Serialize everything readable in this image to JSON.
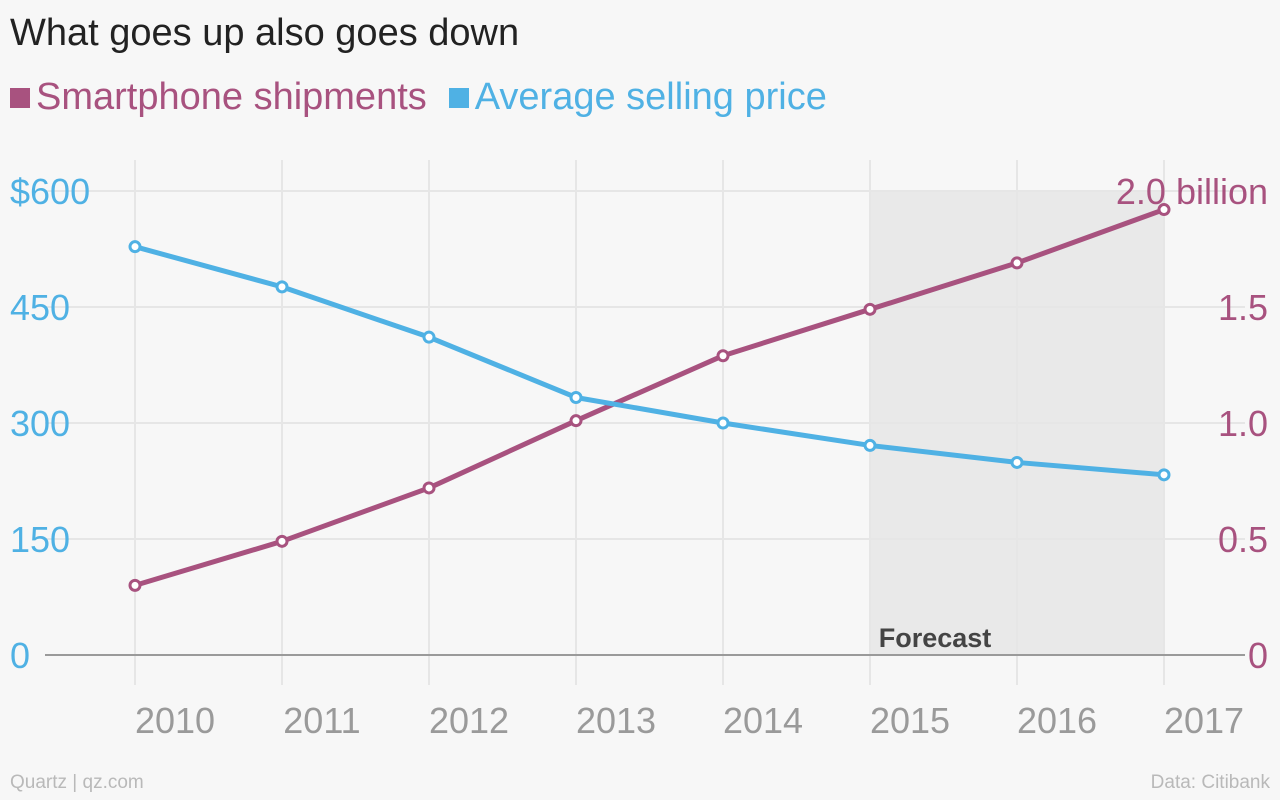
{
  "title": "What goes up also goes down",
  "colors": {
    "shipments": "#a8527f",
    "price": "#4fb1e4",
    "grid": "#e6e6e6",
    "baseline": "#9a9a9a",
    "forecast_band": "#e9e9e9",
    "tick_x": "#9a9a9a",
    "forecast_label": "#444444"
  },
  "footer": {
    "source_left": "Quartz | qz.com",
    "source_right": "Data: Citibank"
  },
  "chart_data": {
    "type": "line",
    "categories": [
      "2010",
      "2011",
      "2012",
      "2013",
      "2014",
      "2015",
      "2016",
      "2017"
    ],
    "x_tick_labels": [
      "2010",
      "2011",
      "2012",
      "2013",
      "2014",
      "2015",
      "2016",
      "2017"
    ],
    "series": [
      {
        "name": "Smartphone shipments",
        "axis": "right",
        "color": "#a8527f",
        "values": [
          0.3,
          0.49,
          0.72,
          1.01,
          1.29,
          1.49,
          1.69,
          1.92
        ]
      },
      {
        "name": "Average selling price",
        "axis": "left",
        "color": "#4fb1e4",
        "values": [
          528,
          476,
          411,
          333,
          300,
          271,
          249,
          233
        ]
      }
    ],
    "y_left": {
      "ylim": [
        0,
        600
      ],
      "ticks": [
        0,
        150,
        300,
        450,
        600
      ],
      "tick_labels": [
        "0",
        "150",
        "300",
        "450",
        "$600"
      ]
    },
    "y_right": {
      "ylim": [
        0,
        2.0
      ],
      "ticks": [
        0,
        0.5,
        1.0,
        1.5,
        2.0
      ],
      "tick_labels": [
        "0",
        "0.5",
        "1.0",
        "1.5",
        "2.0 billion"
      ]
    },
    "forecast": {
      "label": "Forecast",
      "from": "2015",
      "to": "2017"
    },
    "grid": true,
    "legend": "top-left"
  }
}
